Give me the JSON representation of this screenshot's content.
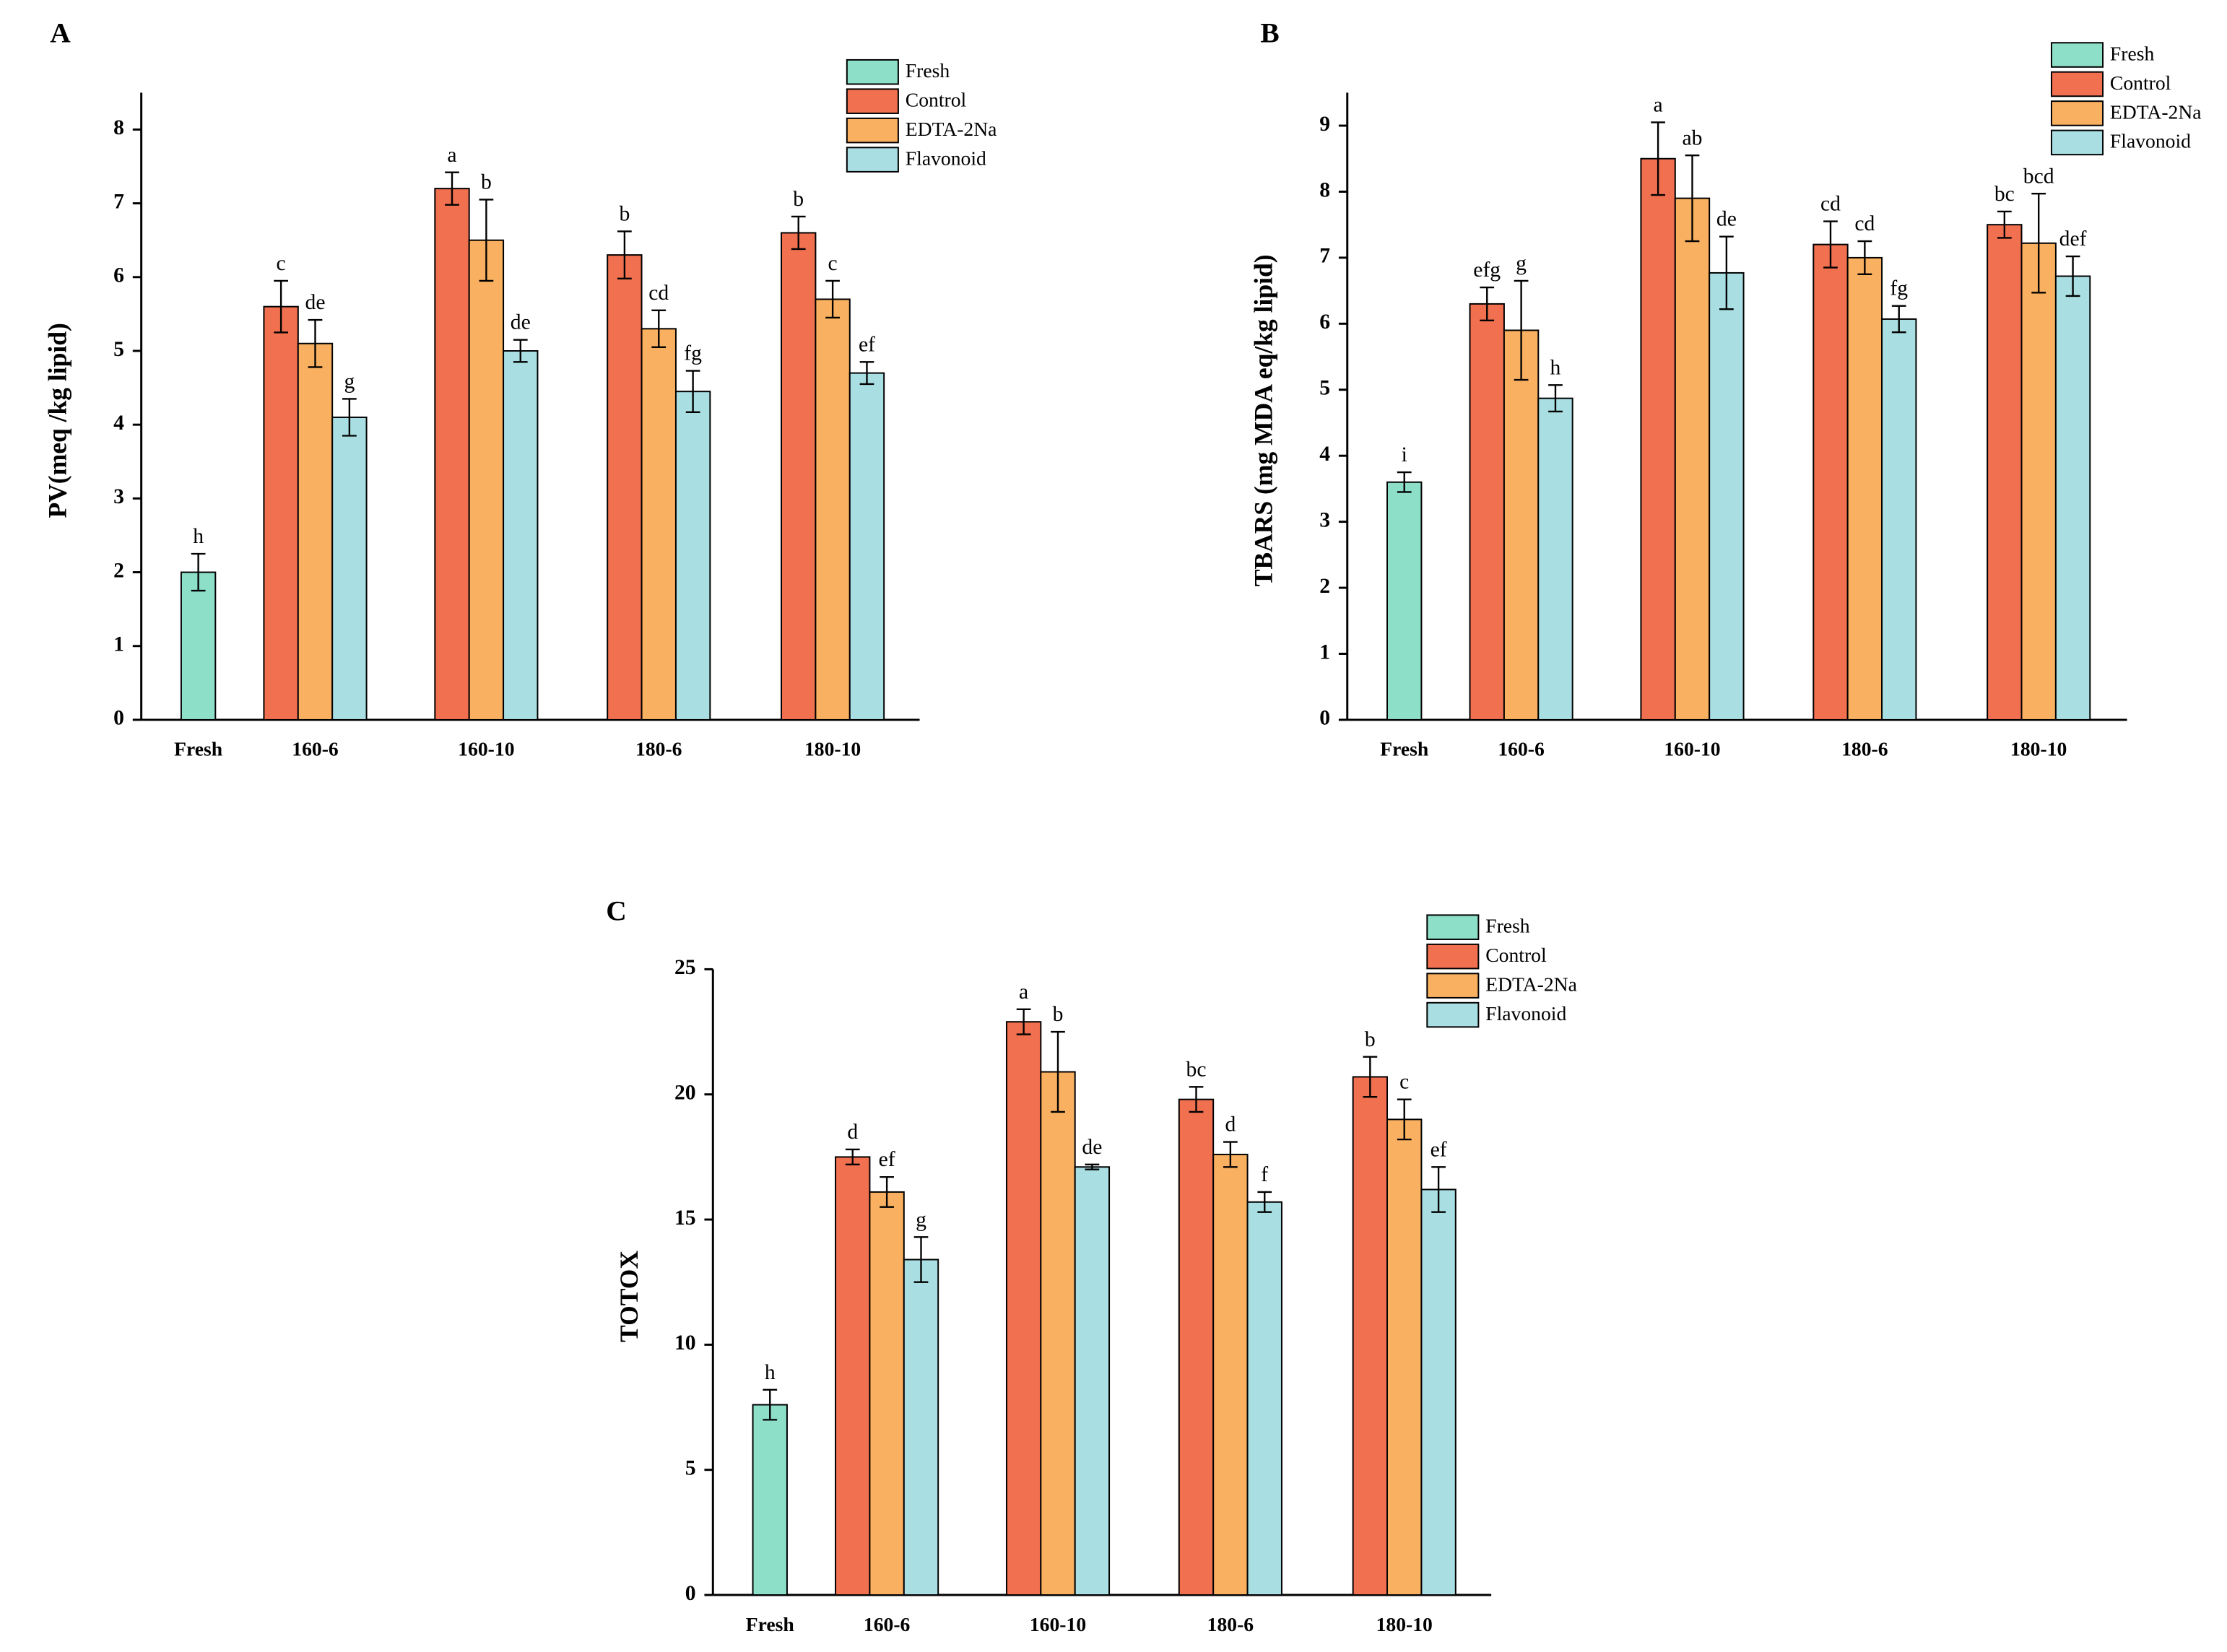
{
  "chart_data": [
    {
      "type": "bar",
      "panel": "A",
      "ylabel": "PV(meq /kg lipid)",
      "categories": [
        "Fresh",
        "160-6",
        "160-10",
        "180-6",
        "180-10"
      ],
      "series": [
        {
          "name": "Fresh",
          "color": "#8ddfc8",
          "values": [
            2.0,
            null,
            null,
            null,
            null
          ],
          "errors": [
            0.25,
            null,
            null,
            null,
            null
          ],
          "labels": [
            "h",
            null,
            null,
            null,
            null
          ]
        },
        {
          "name": "Control",
          "color": "#f07050",
          "values": [
            null,
            5.6,
            7.2,
            6.3,
            6.6
          ],
          "errors": [
            null,
            0.35,
            0.22,
            0.32,
            0.22
          ],
          "labels": [
            null,
            "c",
            "a",
            "b",
            "b"
          ]
        },
        {
          "name": "EDTA-2Na",
          "color": "#f9b060",
          "values": [
            null,
            5.1,
            6.5,
            5.3,
            5.7
          ],
          "errors": [
            null,
            0.32,
            0.55,
            0.25,
            0.25
          ],
          "labels": [
            null,
            "de",
            "b",
            "cd",
            "c"
          ]
        },
        {
          "name": "Flavonoid",
          "color": "#a9dfe3",
          "values": [
            null,
            4.1,
            5.0,
            4.45,
            4.7
          ],
          "errors": [
            null,
            0.25,
            0.15,
            0.28,
            0.15
          ],
          "labels": [
            null,
            "g",
            "de",
            "fg",
            "ef"
          ]
        }
      ],
      "ylim": [
        0,
        8.5
      ],
      "yticks": [
        0,
        1,
        2,
        3,
        4,
        5,
        6,
        7,
        8
      ],
      "legend": "upper right"
    },
    {
      "type": "bar",
      "panel": "B",
      "ylabel": "TBARS (mg MDA eq/kg lipid)",
      "categories": [
        "Fresh",
        "160-6",
        "160-10",
        "180-6",
        "180-10"
      ],
      "series": [
        {
          "name": "Fresh",
          "color": "#8ddfc8",
          "values": [
            3.6,
            null,
            null,
            null,
            null
          ],
          "errors": [
            0.15,
            null,
            null,
            null,
            null
          ],
          "labels": [
            "i",
            null,
            null,
            null,
            null
          ]
        },
        {
          "name": "Control",
          "color": "#f07050",
          "values": [
            null,
            6.3,
            8.5,
            7.2,
            7.5
          ],
          "errors": [
            null,
            0.25,
            0.55,
            0.35,
            0.2
          ],
          "labels": [
            null,
            "efg",
            "a",
            "cd",
            "bc"
          ]
        },
        {
          "name": "EDTA-2Na",
          "color": "#f9b060",
          "values": [
            null,
            5.9,
            7.9,
            7.0,
            7.22
          ],
          "errors": [
            null,
            0.75,
            0.65,
            0.25,
            0.75
          ],
          "labels": [
            null,
            "g",
            "ab",
            "cd",
            "bcd"
          ]
        },
        {
          "name": "Flavonoid",
          "color": "#a9dfe3",
          "values": [
            null,
            4.87,
            6.77,
            6.07,
            6.72
          ],
          "errors": [
            null,
            0.2,
            0.55,
            0.2,
            0.3
          ],
          "labels": [
            null,
            "h",
            "de",
            "fg",
            "def"
          ]
        }
      ],
      "ylim": [
        0,
        9.5
      ],
      "yticks": [
        0,
        1,
        2,
        3,
        4,
        5,
        6,
        7,
        8,
        9
      ],
      "legend": "upper right"
    },
    {
      "type": "bar",
      "panel": "C",
      "ylabel": "TOTOX",
      "categories": [
        "Fresh",
        "160-6",
        "160-10",
        "180-6",
        "180-10"
      ],
      "series": [
        {
          "name": "Fresh",
          "color": "#8ddfc8",
          "values": [
            7.6,
            null,
            null,
            null,
            null
          ],
          "errors": [
            0.6,
            null,
            null,
            null,
            null
          ],
          "labels": [
            "h",
            null,
            null,
            null,
            null
          ]
        },
        {
          "name": "Control",
          "color": "#f07050",
          "values": [
            null,
            17.5,
            22.9,
            19.8,
            20.7
          ],
          "errors": [
            null,
            0.3,
            0.5,
            0.5,
            0.8
          ],
          "labels": [
            null,
            "d",
            "a",
            "bc",
            "b"
          ]
        },
        {
          "name": "EDTA-2Na",
          "color": "#f9b060",
          "values": [
            null,
            16.1,
            20.9,
            17.6,
            19.0
          ],
          "errors": [
            null,
            0.6,
            1.6,
            0.5,
            0.8
          ],
          "labels": [
            null,
            "ef",
            "b",
            "d",
            "c"
          ]
        },
        {
          "name": "Flavonoid",
          "color": "#a9dfe3",
          "values": [
            null,
            13.4,
            17.1,
            15.7,
            16.2
          ],
          "errors": [
            null,
            0.9,
            0.1,
            0.4,
            0.9
          ],
          "labels": [
            null,
            "g",
            "de",
            "f",
            "ef"
          ]
        }
      ],
      "ylim": [
        0,
        25
      ],
      "yticks": [
        0,
        5,
        10,
        15,
        20,
        25
      ],
      "legend": "upper right"
    }
  ]
}
